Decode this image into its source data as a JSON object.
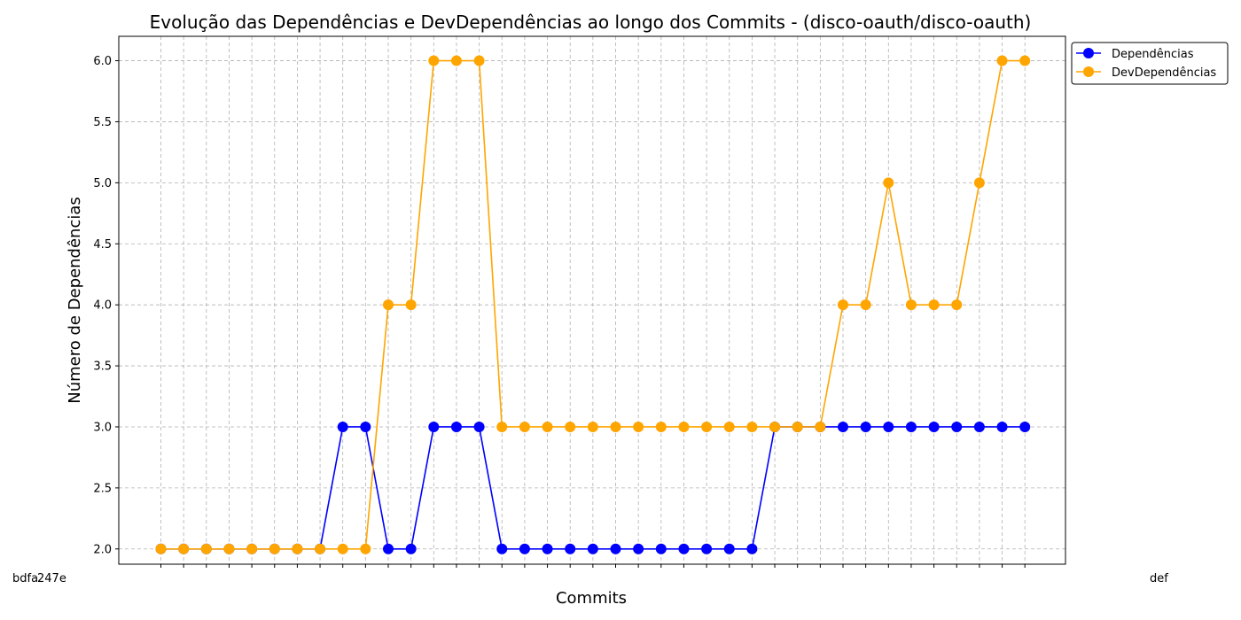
{
  "chart_data": {
    "type": "line",
    "title": "Evolução das Dependências e DevDependências ao longo dos Commits - (disco-oauth/disco-oauth)",
    "xlabel": "Commits",
    "ylabel": "Número de Dependências",
    "ylim": [
      1.875,
      6.2
    ],
    "yticks": [
      2.0,
      2.5,
      3.0,
      3.5,
      4.0,
      4.5,
      5.0,
      5.5,
      6.0
    ],
    "grid": true,
    "legend_position": "top-right",
    "x_tick_labels_visible": [
      "bdfa",
      "247e",
      "def"
    ],
    "x": [
      1,
      2,
      3,
      4,
      5,
      6,
      7,
      8,
      9,
      10,
      11,
      12,
      13,
      14,
      15,
      16,
      17,
      18,
      19,
      20,
      21,
      22,
      23,
      24,
      25,
      26,
      27,
      28,
      29,
      30,
      31,
      32,
      33,
      34,
      35,
      36,
      37,
      38,
      39
    ],
    "series": [
      {
        "name": "Dependências",
        "color": "#0000ff",
        "values": [
          2,
          2,
          2,
          2,
          2,
          2,
          2,
          2,
          3,
          3,
          2,
          2,
          3,
          3,
          3,
          2,
          2,
          2,
          2,
          2,
          2,
          2,
          2,
          2,
          2,
          2,
          2,
          3,
          3,
          3,
          3,
          3,
          3,
          3,
          3,
          3,
          3,
          3,
          3
        ]
      },
      {
        "name": "DevDependências",
        "color": "#ffa500",
        "values": [
          2,
          2,
          2,
          2,
          2,
          2,
          2,
          2,
          2,
          2,
          4,
          4,
          6,
          6,
          6,
          3,
          3,
          3,
          3,
          3,
          3,
          3,
          3,
          3,
          3,
          3,
          3,
          3,
          3,
          3,
          4,
          4,
          5,
          4,
          4,
          4,
          5,
          6,
          6
        ]
      }
    ]
  }
}
